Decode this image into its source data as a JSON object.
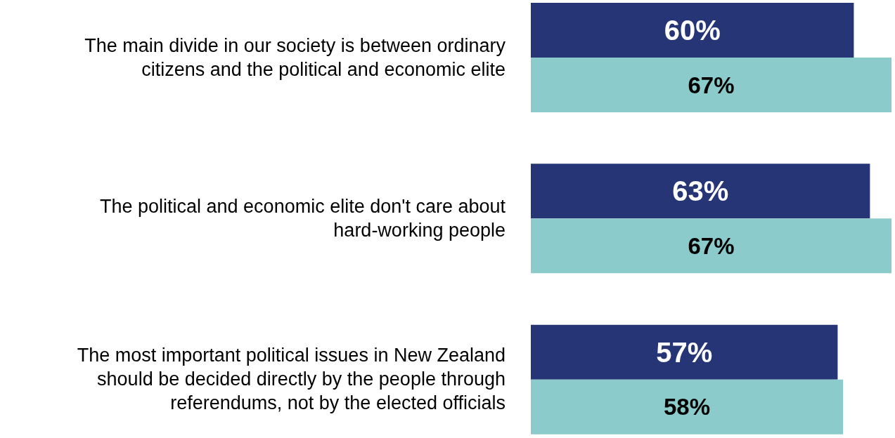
{
  "chart_data": {
    "type": "bar",
    "orientation": "horizontal",
    "categories": [
      "The main divide in our society is between ordinary citizens and the political and economic elite",
      "The political and economic elite don't care about hard-working people",
      "The most important political issues in New Zealand should be decided directly by the people through referendums, not by the elected officials"
    ],
    "series": [
      {
        "color": "#253575",
        "values": [
          60,
          63,
          57
        ],
        "value_labels": [
          "60%",
          "63%",
          "57%"
        ]
      },
      {
        "color": "#8ccbcb",
        "values": [
          67,
          67,
          58
        ],
        "value_labels": [
          "67%",
          "67%",
          "58%"
        ]
      }
    ]
  }
}
